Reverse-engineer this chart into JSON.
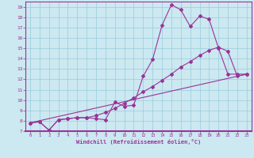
{
  "xlabel": "Windchill (Refroidissement éolien,°C)",
  "bg_color": "#cce8f0",
  "line_color": "#993399",
  "grid_color": "#99ccdd",
  "xlim": [
    -0.5,
    23.5
  ],
  "ylim": [
    7,
    19.5
  ],
  "xticks": [
    0,
    1,
    2,
    3,
    4,
    5,
    6,
    7,
    8,
    9,
    10,
    11,
    12,
    13,
    14,
    15,
    16,
    17,
    18,
    19,
    20,
    21,
    22,
    23
  ],
  "yticks": [
    7,
    8,
    9,
    10,
    11,
    12,
    13,
    14,
    15,
    16,
    17,
    18,
    19
  ],
  "line1_x": [
    0,
    1,
    2,
    3,
    4,
    5,
    6,
    7,
    8,
    9,
    10,
    11,
    12,
    13,
    14,
    15,
    16,
    17,
    18,
    19,
    20,
    21,
    22,
    23
  ],
  "line1_y": [
    7.8,
    7.9,
    7.1,
    8.1,
    8.2,
    8.3,
    8.3,
    8.2,
    8.1,
    9.8,
    9.4,
    9.5,
    12.3,
    13.9,
    17.2,
    19.2,
    18.7,
    17.1,
    18.1,
    17.8,
    15.0,
    12.5,
    12.5,
    12.5
  ],
  "line2_x": [
    0,
    1,
    2,
    3,
    4,
    5,
    6,
    7,
    8,
    9,
    10,
    11,
    12,
    13,
    14,
    15,
    16,
    17,
    18,
    19,
    20,
    21,
    22,
    23
  ],
  "line2_y": [
    7.8,
    7.9,
    7.1,
    8.1,
    8.2,
    8.3,
    8.3,
    8.5,
    8.8,
    9.2,
    9.7,
    10.2,
    10.8,
    11.3,
    11.9,
    12.5,
    13.2,
    13.7,
    14.3,
    14.8,
    15.1,
    14.7,
    12.3,
    12.5
  ],
  "line3_x": [
    0,
    23
  ],
  "line3_y": [
    7.8,
    12.5
  ]
}
